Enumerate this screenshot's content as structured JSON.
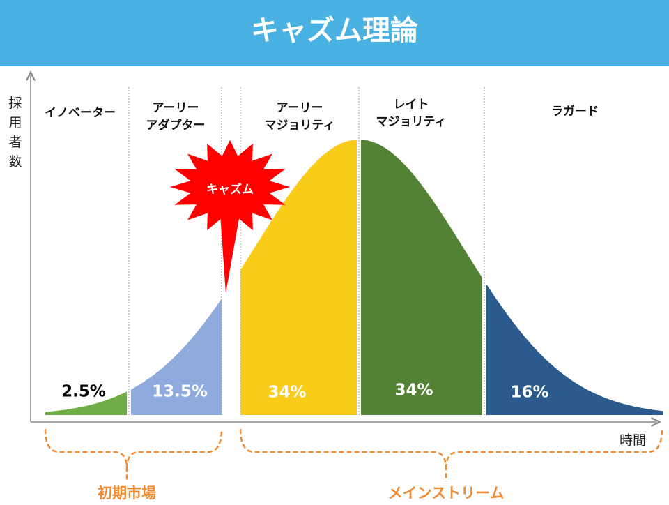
{
  "header": {
    "title": "キャズム理論"
  },
  "y_axis_label": "採用者数",
  "x_axis_label": "時間",
  "segments": [
    {
      "label": [
        "イノベーター"
      ],
      "share": "2.5%"
    },
    {
      "label": [
        "アーリー",
        "アダプター"
      ],
      "share": "13.5%"
    },
    {
      "label": [
        "アーリー",
        "マジョリティ"
      ],
      "share": "34%"
    },
    {
      "label": [
        "レイト",
        "マジョリティ"
      ],
      "share": "34%"
    },
    {
      "label": [
        "ラガード"
      ],
      "share": "16%"
    }
  ],
  "chasm_label": "キャズム",
  "brackets": [
    {
      "label": "初期市場"
    },
    {
      "label": "メインストリーム"
    }
  ]
}
